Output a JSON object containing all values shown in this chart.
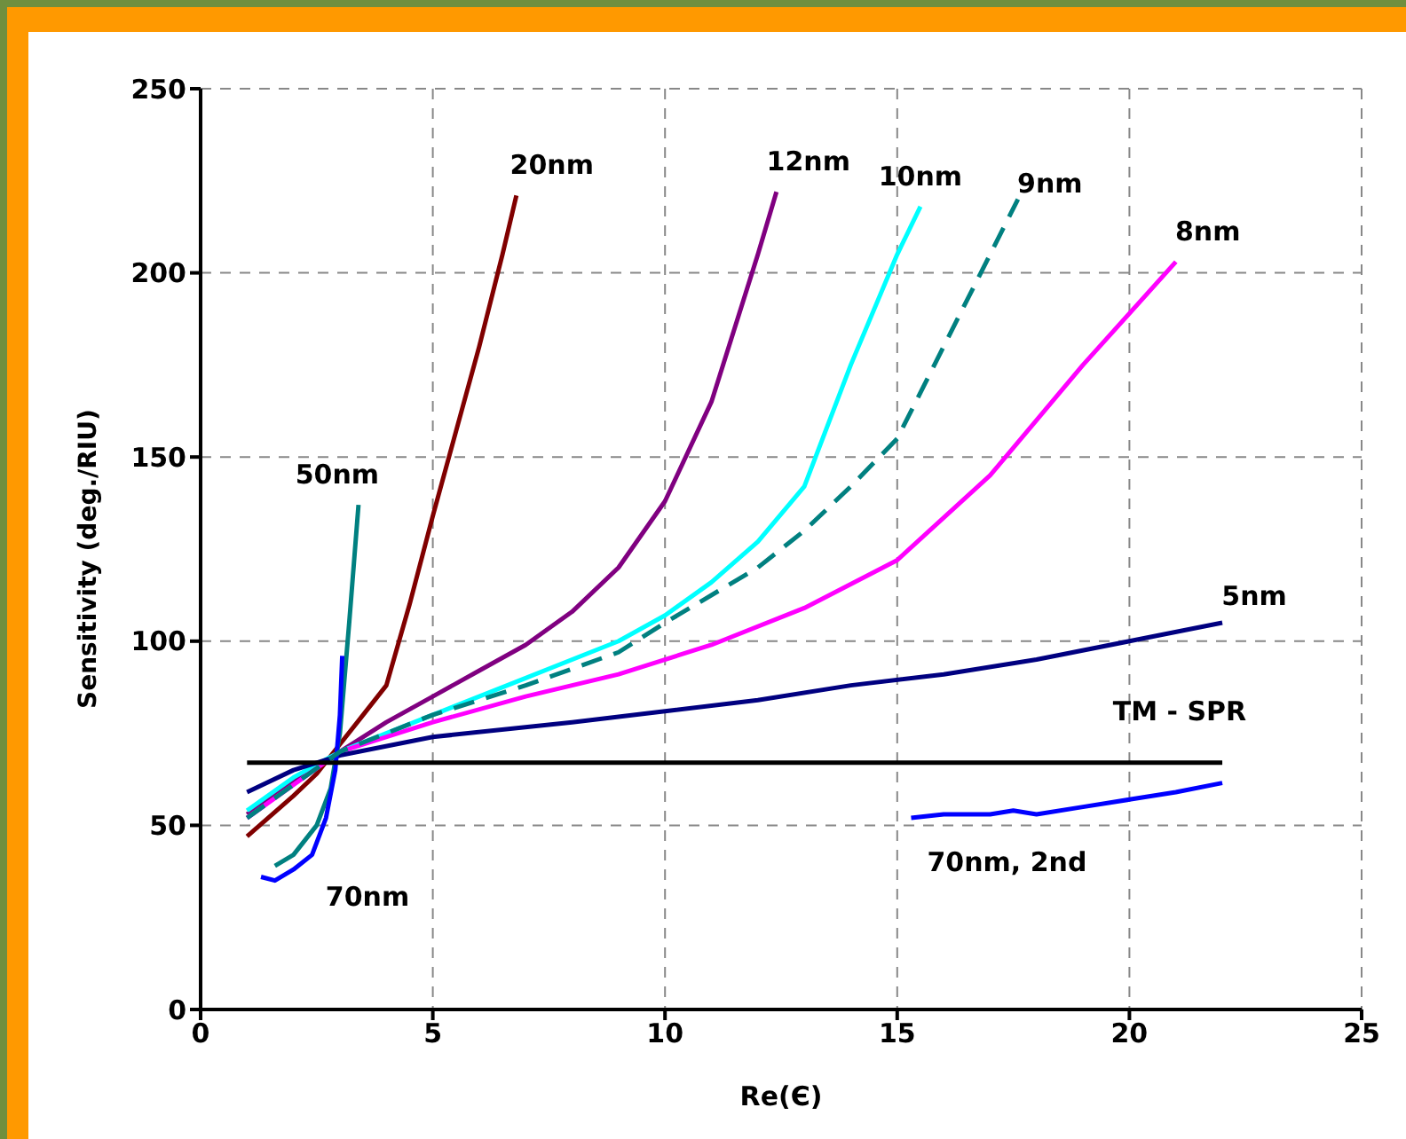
{
  "chart_data": {
    "type": "line",
    "xlabel": "Re(Є)",
    "ylabel": "Sensitivity (deg./RIU)",
    "xlim": [
      0,
      25
    ],
    "xticks": [
      0,
      5,
      10,
      15,
      20,
      25
    ],
    "ylim": [
      0,
      250
    ],
    "yticks": [
      0,
      50,
      100,
      150,
      200,
      250
    ],
    "grid": true,
    "legend": false,
    "marker": "none",
    "series": [
      {
        "name": "20nm",
        "color": "#800000",
        "x": [
          1,
          2,
          2.5,
          3,
          3.5,
          4,
          4.5,
          5,
          5.5,
          6,
          6.5,
          6.8
        ],
        "values": [
          47,
          58,
          64,
          72,
          80,
          88,
          110,
          134,
          157,
          180,
          205,
          221
        ]
      },
      {
        "name": "12nm",
        "color": "#800080",
        "x": [
          1,
          2,
          3,
          4,
          5,
          6,
          7,
          8,
          9,
          10,
          11,
          12,
          12.4
        ],
        "values": [
          53,
          62,
          70,
          78,
          85,
          92,
          99,
          108,
          120,
          138,
          165,
          205,
          222
        ]
      },
      {
        "name": "10nm",
        "color": "#00ffff",
        "x": [
          1,
          2,
          3,
          5,
          7,
          9,
          10,
          11,
          12,
          13,
          14,
          15,
          15.5
        ],
        "values": [
          54,
          63,
          70,
          80,
          90,
          100,
          107,
          116,
          127,
          142,
          175,
          205,
          218
        ]
      },
      {
        "name": "9nm",
        "color": "#008080",
        "line_style": "dashed",
        "x": [
          1,
          2,
          3,
          5,
          7,
          9,
          10,
          12,
          13,
          14,
          15,
          16,
          17,
          17.6
        ],
        "values": [
          52,
          61,
          70,
          80,
          88,
          97,
          105,
          120,
          130,
          142,
          155,
          180,
          205,
          220
        ]
      },
      {
        "name": "8nm",
        "color": "#ff00ff",
        "x": [
          1,
          2,
          3,
          5,
          7,
          9,
          11,
          13,
          15,
          17,
          19,
          21
        ],
        "values": [
          52,
          61,
          70,
          78,
          85,
          91,
          99,
          109,
          122,
          145,
          175,
          203
        ]
      },
      {
        "name": "5nm",
        "color": "#000080",
        "x": [
          1,
          2,
          3,
          5,
          8,
          10,
          12,
          14,
          16,
          18,
          20,
          22
        ],
        "values": [
          59,
          65,
          69,
          74,
          78,
          81,
          84,
          88,
          91,
          95,
          100,
          105
        ]
      },
      {
        "name": "50nm",
        "color": "#008080",
        "x": [
          1.6,
          2,
          2.5,
          2.8,
          3,
          3.2,
          3.4
        ],
        "values": [
          39,
          42,
          50,
          60,
          75,
          105,
          137
        ]
      },
      {
        "name": "70nm",
        "color": "#0000ff",
        "x": [
          1.3,
          1.6,
          2,
          2.4,
          2.7,
          2.9,
          3,
          3.05
        ],
        "values": [
          36,
          35,
          38,
          42,
          52,
          65,
          80,
          96
        ]
      },
      {
        "name": "70nm, 2nd",
        "color": "#0000ff",
        "x": [
          15.3,
          16,
          17,
          17.5,
          18,
          19,
          20,
          21,
          22
        ],
        "values": [
          52,
          53,
          53,
          54,
          53,
          55,
          57,
          59,
          61.5
        ]
      },
      {
        "name": "TM - SPR",
        "color": "#000000",
        "x": [
          1,
          22
        ],
        "values": [
          67,
          67
        ]
      }
    ]
  }
}
